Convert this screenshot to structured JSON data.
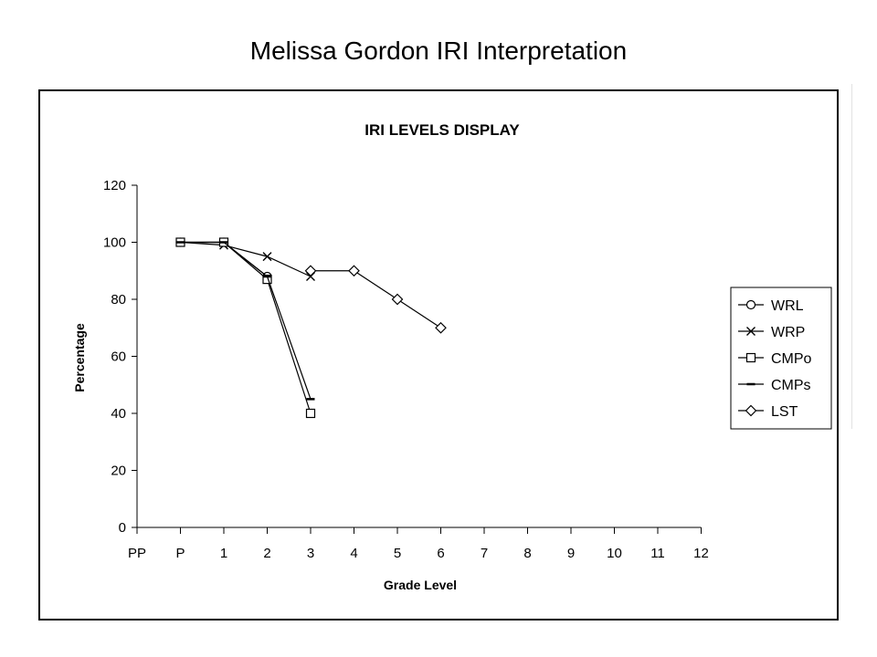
{
  "page": {
    "title": "Melissa Gordon IRI Interpretation"
  },
  "chart_data": {
    "type": "line",
    "title": "IRI LEVELS DISPLAY",
    "xlabel": "Grade Level",
    "ylabel": "Percentage",
    "categories": [
      "PP",
      "P",
      "1",
      "2",
      "3",
      "4",
      "5",
      "6",
      "7",
      "8",
      "9",
      "10",
      "11",
      "12"
    ],
    "ylim": [
      0,
      120
    ],
    "yticks": [
      0,
      20,
      40,
      60,
      80,
      100,
      120
    ],
    "grid": false,
    "legend_position": "right",
    "series": [
      {
        "name": "WRL",
        "marker": "circle",
        "values": [
          null,
          100,
          100,
          88,
          null,
          null,
          null,
          null,
          null,
          null,
          null,
          null,
          null,
          null
        ]
      },
      {
        "name": "WRP",
        "marker": "x",
        "values": [
          null,
          100,
          99,
          95,
          88,
          null,
          null,
          null,
          null,
          null,
          null,
          null,
          null,
          null
        ]
      },
      {
        "name": "CMPo",
        "marker": "square",
        "values": [
          null,
          100,
          100,
          87,
          40,
          null,
          null,
          null,
          null,
          null,
          null,
          null,
          null,
          null
        ]
      },
      {
        "name": "CMPs",
        "marker": "dash",
        "values": [
          null,
          100,
          100,
          88,
          45,
          null,
          null,
          null,
          null,
          null,
          null,
          null,
          null,
          null
        ]
      },
      {
        "name": "LST",
        "marker": "diamond",
        "values": [
          null,
          null,
          null,
          null,
          90,
          90,
          80,
          70,
          null,
          null,
          null,
          null,
          null,
          null
        ]
      }
    ]
  }
}
